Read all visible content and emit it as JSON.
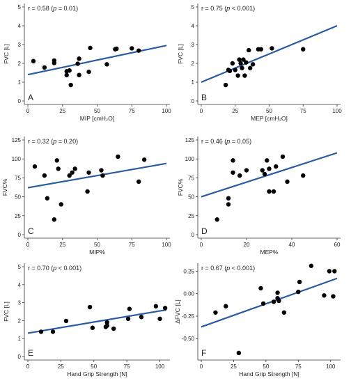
{
  "chart_data": [
    {
      "type": "scatter",
      "panel_label": "A",
      "annotation": "r = 0.58 (p = 0.01)",
      "r_text": "r = 0.58 (",
      "p_italic": "p",
      "p_rest": " = 0.01)",
      "xlabel": "MIP [cmH₂O]",
      "ylabel": "FVC [L]",
      "xlim": [
        0,
        100
      ],
      "ylim": [
        0,
        5
      ],
      "xticks": [
        0,
        25,
        50,
        75,
        100
      ],
      "yticks": [
        0,
        1,
        2,
        3,
        4,
        5
      ],
      "points": [
        [
          4,
          2.12
        ],
        [
          12,
          1.78
        ],
        [
          19,
          2.15
        ],
        [
          19,
          2.02
        ],
        [
          28,
          1.38
        ],
        [
          28,
          1.58
        ],
        [
          30,
          1.62
        ],
        [
          31,
          0.85
        ],
        [
          36,
          1.98
        ],
        [
          37,
          2.25
        ],
        [
          37,
          1.38
        ],
        [
          44,
          1.55
        ],
        [
          45,
          2.82
        ],
        [
          57,
          1.95
        ],
        [
          63,
          2.75
        ],
        [
          64,
          2.78
        ],
        [
          75,
          2.8
        ],
        [
          80,
          2.68
        ]
      ],
      "fit": [
        [
          0,
          1.4
        ],
        [
          100,
          2.95
        ]
      ]
    },
    {
      "type": "scatter",
      "panel_label": "B",
      "annotation": "r = 0.75 (p < 0.001)",
      "r_text": "r = 0.75 (",
      "p_italic": "p",
      "p_rest": " < 0.001)",
      "xlabel": "MEP [cmH₂O]",
      "ylabel": "FVC [L]",
      "xlim": [
        0,
        100
      ],
      "ylim": [
        0,
        5
      ],
      "xticks": [
        0,
        25,
        50,
        75,
        100
      ],
      "yticks": [
        0,
        1,
        2,
        3,
        4,
        5
      ],
      "points": [
        [
          18,
          0.85
        ],
        [
          20,
          1.65
        ],
        [
          21,
          1.6
        ],
        [
          23,
          2.0
        ],
        [
          25,
          1.65
        ],
        [
          27,
          1.35
        ],
        [
          28,
          2.2
        ],
        [
          29,
          2.0
        ],
        [
          30,
          1.75
        ],
        [
          31,
          2.2
        ],
        [
          32,
          1.35
        ],
        [
          33,
          2.05
        ],
        [
          35,
          2.7
        ],
        [
          36,
          1.75
        ],
        [
          38,
          1.95
        ],
        [
          42,
          2.75
        ],
        [
          44,
          2.75
        ],
        [
          52,
          2.8
        ],
        [
          75,
          2.75
        ]
      ],
      "fit": [
        [
          0,
          1.0
        ],
        [
          100,
          4.0
        ]
      ]
    },
    {
      "type": "scatter",
      "panel_label": "C",
      "annotation": "r = 0.32 (p = 0.20)",
      "r_text": "r = 0.32 (",
      "p_italic": "p",
      "p_rest": " = 0.20)",
      "xlabel": "MIP%",
      "ylabel": "FVC%",
      "xlim": [
        0,
        100
      ],
      "ylim": [
        0,
        125
      ],
      "xticks": [
        0,
        25,
        50,
        75,
        100
      ],
      "yticks": [
        0,
        25,
        50,
        75,
        100,
        125
      ],
      "points": [
        [
          5,
          90
        ],
        [
          12,
          78
        ],
        [
          14,
          48
        ],
        [
          19,
          20
        ],
        [
          21,
          98
        ],
        [
          22,
          87
        ],
        [
          24,
          40
        ],
        [
          30,
          78
        ],
        [
          32,
          82
        ],
        [
          34,
          87
        ],
        [
          43,
          57
        ],
        [
          44,
          82
        ],
        [
          53,
          85
        ],
        [
          54,
          78
        ],
        [
          65,
          103
        ],
        [
          80,
          70
        ],
        [
          84,
          99
        ]
      ],
      "fit": [
        [
          0,
          62
        ],
        [
          100,
          94
        ]
      ]
    },
    {
      "type": "scatter",
      "panel_label": "D",
      "annotation": "r = 0.46 (p = 0.05)",
      "r_text": "r = 0.46 (",
      "p_italic": "p",
      "p_rest": " = 0.05)",
      "xlabel": "MEP%",
      "ylabel": "FVC%",
      "xlim": [
        0,
        60
      ],
      "ylim": [
        0,
        125
      ],
      "xticks": [
        0,
        20,
        40,
        60
      ],
      "yticks": [
        0,
        25,
        50,
        75,
        100,
        125
      ],
      "points": [
        [
          7,
          20
        ],
        [
          12,
          48
        ],
        [
          12,
          40
        ],
        [
          14,
          98
        ],
        [
          14,
          82
        ],
        [
          17,
          78
        ],
        [
          20,
          85
        ],
        [
          27,
          85
        ],
        [
          28,
          80
        ],
        [
          29,
          98
        ],
        [
          30,
          87
        ],
        [
          30,
          57
        ],
        [
          32,
          57
        ],
        [
          33,
          90
        ],
        [
          36,
          103
        ],
        [
          38,
          70
        ],
        [
          45,
          78
        ]
      ],
      "fit": [
        [
          0,
          50
        ],
        [
          60,
          108
        ]
      ]
    },
    {
      "type": "scatter",
      "panel_label": "E",
      "annotation": "r = 0.70 (p < 0.001)",
      "r_text": "r = 0.70 (",
      "p_italic": "p",
      "p_rest": " < 0.001)",
      "xlabel": "Hand Grip Strength [N]",
      "ylabel": "FVC [L]",
      "xlim": [
        0,
        105
      ],
      "ylim": [
        0,
        5
      ],
      "xticks": [
        0,
        25,
        50,
        75,
        100
      ],
      "yticks": [
        0,
        1,
        2,
        3,
        4,
        5
      ],
      "points": [
        [
          10,
          1.38
        ],
        [
          19,
          1.38
        ],
        [
          29,
          1.98
        ],
        [
          47,
          2.75
        ],
        [
          49,
          1.6
        ],
        [
          59,
          1.65
        ],
        [
          60,
          1.72
        ],
        [
          60,
          1.9
        ],
        [
          65,
          1.55
        ],
        [
          76,
          2.1
        ],
        [
          77,
          2.65
        ],
        [
          86,
          2.2
        ],
        [
          97,
          2.8
        ],
        [
          100,
          2.1
        ],
        [
          104,
          2.7
        ]
      ],
      "fit": [
        [
          0,
          1.3
        ],
        [
          105,
          2.6
        ]
      ]
    },
    {
      "type": "scatter",
      "panel_label": "F",
      "annotation": "r = 0.67 (p < 0.001)",
      "r_text": "r = 0.67 (",
      "p_italic": "p",
      "p_rest": " < 0.001)",
      "xlabel": "Hand Grip Strength [N]",
      "ylabel": "ΔFVC [L]",
      "xlim": [
        0,
        105
      ],
      "ylim": [
        -0.7,
        0.3
      ],
      "xticks": [
        0,
        25,
        50,
        75,
        100
      ],
      "yticks": [
        -0.5,
        -0.25,
        0.0,
        0.25
      ],
      "ytick_labels": [
        "-0.50",
        "-0.25",
        "0.00",
        "0.25"
      ],
      "points": [
        [
          11,
          -0.21
        ],
        [
          19,
          -0.14
        ],
        [
          29,
          -0.66
        ],
        [
          46,
          0.06
        ],
        [
          48,
          -0.11
        ],
        [
          56,
          -0.09
        ],
        [
          59,
          -0.05
        ],
        [
          59,
          0.01
        ],
        [
          60,
          -0.08
        ],
        [
          64,
          -0.21
        ],
        [
          75,
          0.02
        ],
        [
          76,
          0.13
        ],
        [
          85,
          0.31
        ],
        [
          95,
          -0.02
        ],
        [
          99,
          0.25
        ],
        [
          102,
          -0.03
        ],
        [
          103,
          0.25
        ]
      ],
      "fit": [
        [
          0,
          -0.37
        ],
        [
          105,
          0.17
        ]
      ]
    }
  ]
}
